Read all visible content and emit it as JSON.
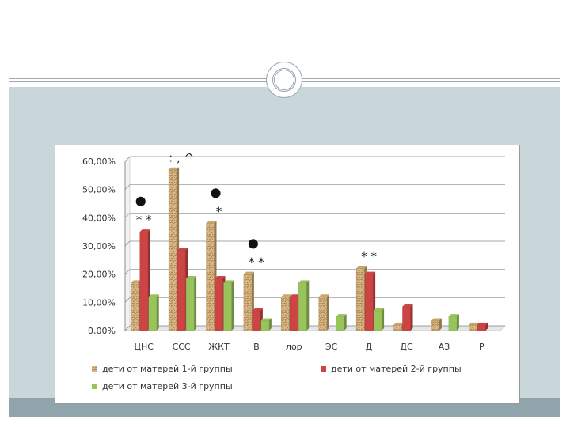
{
  "chart_data": {
    "type": "bar",
    "title": "",
    "xlabel": "",
    "ylabel": "",
    "ylim": [
      0,
      60
    ],
    "y_ticks": [
      "0,00%",
      "10,00%",
      "20,00%",
      "30,00%",
      "40,00%",
      "50,00%",
      "60,00%"
    ],
    "y_tick_values": [
      0,
      10,
      20,
      30,
      40,
      50,
      60
    ],
    "grid": true,
    "legend_position": "bottom",
    "categories": [
      "ЦНС",
      "ССС",
      "ЖКТ",
      "В",
      "лор",
      "ЭС",
      "Д",
      "ДС",
      "АЗ",
      "Р"
    ],
    "series": [
      {
        "name": "дети от матерей 1-й группы",
        "color": "#c9a66b",
        "values": [
          17,
          57,
          38,
          20,
          12,
          12,
          22,
          2,
          3.5,
          2
        ]
      },
      {
        "name": "дети от матерей 2-й группы",
        "color": "#cc4444",
        "values": [
          35,
          28.5,
          18.5,
          7,
          12,
          0,
          20,
          8.5,
          0,
          2
        ]
      },
      {
        "name": "дети от матерей 3-й группы",
        "color": "#99c45c",
        "values": [
          12,
          18.5,
          17,
          3.5,
          17,
          5,
          7,
          0,
          5,
          0
        ]
      }
    ],
    "annotations": [
      {
        "category": "ЦНС",
        "text": "* *"
      },
      {
        "category": "ЖКТ",
        "text": "*"
      },
      {
        "category": "В",
        "text": "* *"
      },
      {
        "category": "Д",
        "text": "* *"
      },
      {
        "category": "ССС",
        "text": ": , ^"
      }
    ],
    "markers": [
      {
        "category": "ЦНС",
        "symbol": "●"
      },
      {
        "category": "ЖКТ",
        "symbol": "●"
      },
      {
        "category": "В",
        "symbol": "●"
      }
    ]
  }
}
